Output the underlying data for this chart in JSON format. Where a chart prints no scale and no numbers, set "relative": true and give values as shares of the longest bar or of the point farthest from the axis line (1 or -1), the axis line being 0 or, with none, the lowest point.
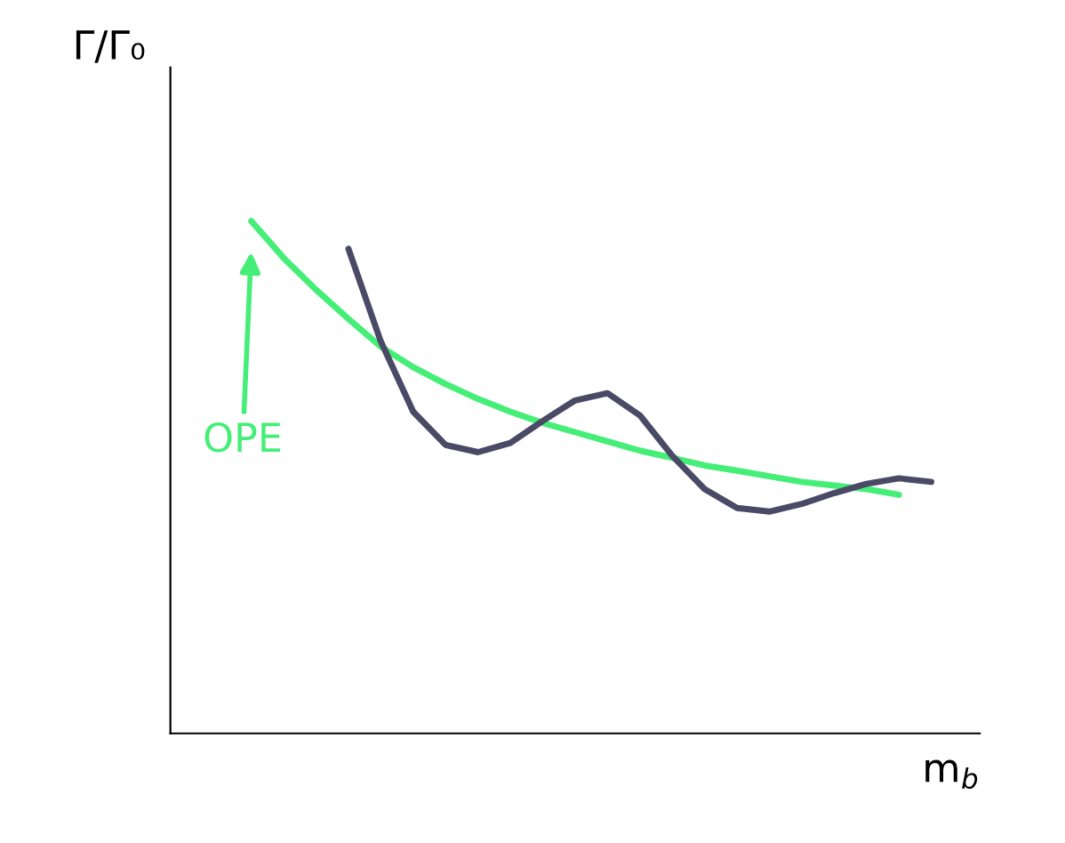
{
  "chart_data": {
    "type": "line",
    "relative": true,
    "xlabel": "m$_{b}$",
    "ylabel": "Γ/Γ₀",
    "annotations": [
      "OPE"
    ],
    "categories": [
      null,
      null,
      null,
      null,
      null,
      null,
      null,
      null,
      null,
      null,
      null,
      null,
      null,
      null,
      null,
      null,
      null,
      null,
      null,
      null,
      null,
      null
    ],
    "series": [
      {
        "color": "#44ee77",
        "values": [
          1,
          0.928,
          0.866,
          0.809,
          0.755,
          0.715,
          0.682,
          0.653,
          0.628,
          0.606,
          0.588,
          0.57,
          0.552,
          0.538,
          0.523,
          0.513,
          0.502,
          0.491,
          0.484,
          0.477,
          0.466,
          null
        ]
      },
      {
        "color": "#4a4a66",
        "values": [
          null,
          null,
          null,
          0.946,
          0.765,
          0.628,
          0.563,
          0.549,
          0.567,
          0.61,
          0.65,
          0.664,
          0.621,
          0.542,
          0.477,
          0.44,
          0.433,
          0.448,
          0.469,
          0.487,
          0.498,
          0.491
        ]
      }
    ],
    "grid": false,
    "legend": false
  }
}
